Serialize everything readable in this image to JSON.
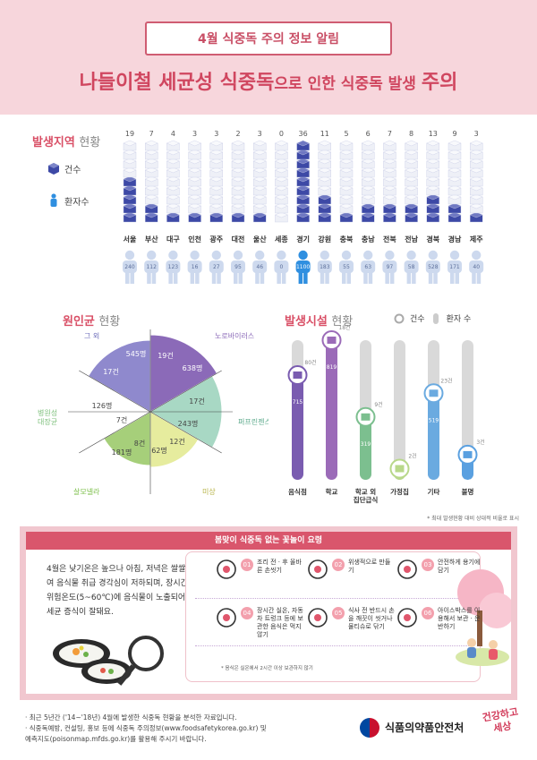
{
  "header": {
    "box_title": "4월 식중독 주의 정보 알림",
    "headline_part1": "나들이철 세균성 식중독",
    "headline_part2": "으로 인한 식중독 발생 ",
    "headline_part3": "주의"
  },
  "region": {
    "title": "발생지역",
    "title_suffix": "현황",
    "legend_cases": "건수",
    "legend_patients": "환자수",
    "regions": [
      {
        "name": "서울",
        "cases": 19,
        "patients": 240
      },
      {
        "name": "부산",
        "cases": 7,
        "patients": 112
      },
      {
        "name": "대구",
        "cases": 4,
        "patients": 123
      },
      {
        "name": "인천",
        "cases": 3,
        "patients": 16
      },
      {
        "name": "광주",
        "cases": 3,
        "patients": 27
      },
      {
        "name": "대전",
        "cases": 2,
        "patients": 95
      },
      {
        "name": "울산",
        "cases": 3,
        "patients": 46
      },
      {
        "name": "세종",
        "cases": 0,
        "patients": 0
      },
      {
        "name": "경기",
        "cases": 36,
        "patients": 1100
      },
      {
        "name": "강원",
        "cases": 11,
        "patients": 183
      },
      {
        "name": "충북",
        "cases": 5,
        "patients": 55
      },
      {
        "name": "충남",
        "cases": 6,
        "patients": 63
      },
      {
        "name": "전북",
        "cases": 7,
        "patients": 97
      },
      {
        "name": "전남",
        "cases": 8,
        "patients": 58
      },
      {
        "name": "경북",
        "cases": 13,
        "patients": 528
      },
      {
        "name": "경남",
        "cases": 9,
        "patients": 171
      },
      {
        "name": "제주",
        "cases": 3,
        "patients": 40
      }
    ],
    "colors": {
      "cube_dark": "#3d49a6",
      "cube_light": "#eef0f7",
      "person": "#cdd9ee",
      "person_highlight": "#2f8fe0"
    }
  },
  "cause": {
    "title": "원인균",
    "title_suffix": "현황",
    "slices": [
      {
        "name": "노로바이러스",
        "cases": "19건",
        "patients": "638명",
        "color": "#8b6ab8"
      },
      {
        "name": "퍼프린젠스",
        "cases": "17건",
        "patients": "243명",
        "color": "#a8d8c4"
      },
      {
        "name": "미상",
        "cases": "12건",
        "patients": "62명",
        "color": "#e6ec9e"
      },
      {
        "name": "살모넬라",
        "cases": "8건",
        "patients": "181명",
        "color": "#a6cf7a"
      },
      {
        "name": "병원성\n대장균",
        "cases": "7건",
        "patients": "126명",
        "color": "#ffffff"
      },
      {
        "name": "그 외",
        "cases": "17건",
        "patients": "545명",
        "color": "#8f89cd"
      }
    ]
  },
  "facility": {
    "title": "발생시설",
    "title_suffix": "현황",
    "legend_cases": "건수",
    "legend_patients": "환자 수",
    "items": [
      {
        "name": "음식점",
        "cases": "80건",
        "patients": "715",
        "color": "#7a5cb0"
      },
      {
        "name": "학교",
        "cases": "18건",
        "patients": "819",
        "color": "#9b6bb8"
      },
      {
        "name": "학교 외\n집단급식",
        "cases": "9건",
        "patients": "319",
        "color": "#7cbf8f"
      },
      {
        "name": "가정집",
        "cases": "2건",
        "patients": "8",
        "color": "#b8d88a"
      },
      {
        "name": "기타",
        "cases": "23건",
        "patients": "519",
        "color": "#6aaae0"
      },
      {
        "name": "불명",
        "cases": "3건",
        "patients": "96",
        "color": "#5aa0e0"
      }
    ],
    "footnote": "* 최대 발생현황 대비 상대적 비율로 표시"
  },
  "tips": {
    "header": "봄맞이 식중독 없는 꽃놀이 요령",
    "intro": "4월은 낮기온은 높으나 아침, 저녁은 쌀쌀하여 음식물 취급 경각심이 저하되며, 장시간 위험온도(5~60℃)에 음식물이 노출되어 세균 증식이 잘돼요.",
    "items": [
      {
        "num": "01",
        "text": "조리 전 · 후 올바른 손씻기",
        "icon": "faucet-icon"
      },
      {
        "num": "02",
        "text": "위생적으로 만들기",
        "icon": "plate-icon"
      },
      {
        "num": "03",
        "text": "안전하게 용기에 담기",
        "icon": "container-icon"
      },
      {
        "num": "04",
        "text": "장시간 실온, 자동차 트렁크 등에 보관한 음식은 먹지 않기",
        "icon": "clock-icon"
      },
      {
        "num": "05",
        "text": "식사 전 반드시 손을 깨끗이 씻거나 물티슈로 닦기",
        "icon": "hand-icon"
      },
      {
        "num": "06",
        "text": "아이스박스를 이용해서 보관 · 운반하기",
        "icon": "icebox-icon"
      }
    ],
    "note": "* 음식은 실온에서 2시간 이상 보관하지 않기"
  },
  "footer": {
    "note1": "· 최근 5년간 ('14~'18년) 4월에 발생한 식중독 현황을 분석한 자료입니다.",
    "note2": "· 식중독예방, 컨설팅, 홍보 등에 식중독 주의정보(www.foodsafetykorea.go.kr) 및",
    "note3": "  예측지도(poisonmap.mfds.go.kr)를 활용해 주시기 바랍니다.",
    "agency": "식품의약품안전처",
    "slogan_line1": "건강하고",
    "slogan_line2": "세상"
  }
}
